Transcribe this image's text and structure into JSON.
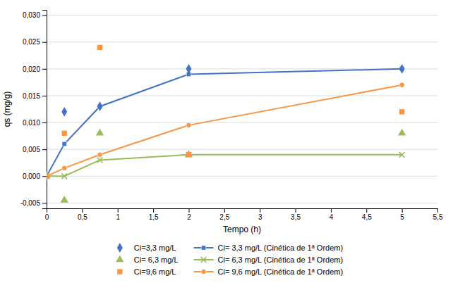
{
  "chart_data": {
    "type": "line",
    "xlabel": "Tempo (h)",
    "ylabel": "qs (mg/g)",
    "x": [
      0,
      0.25,
      0.75,
      2.0,
      5.0
    ],
    "series": [
      {
        "name": "Ci=3,3 mg/L",
        "type": "scatter",
        "color": "#4472C4",
        "marker": "diamond",
        "values": [
          0.0,
          0.012,
          0.013,
          0.02,
          0.02
        ]
      },
      {
        "name": "Ci= 3,3 mg/L (Cinética de 1ª Ordem)",
        "type": "line",
        "color": "#4472C4",
        "marker": "square",
        "values": [
          0.0,
          0.006,
          0.013,
          0.019,
          0.02
        ]
      },
      {
        "name": "Ci= 6,3 mg/L",
        "type": "scatter",
        "color": "#9BBB59",
        "marker": "triangle",
        "values": [
          0.0,
          -0.0045,
          0.008,
          0.004,
          0.008
        ]
      },
      {
        "name": "Ci= 6,3 mg/L (Cinética de 1ª Ordem)",
        "type": "line",
        "color": "#9BBB59",
        "marker": "cross",
        "values": [
          0.0,
          0.0,
          0.003,
          0.004,
          0.004
        ]
      },
      {
        "name": "Ci=9,6 mg/L",
        "type": "scatter",
        "color": "#F79646",
        "marker": "square",
        "values": [
          0.0,
          0.008,
          0.024,
          0.004,
          0.012
        ]
      },
      {
        "name": "Ci= 9,6 mg/L (Cinética de 1ª Ordem)",
        "type": "line",
        "color": "#F79646",
        "marker": "circle",
        "values": [
          0.0,
          0.0015,
          0.004,
          0.0095,
          0.017
        ]
      }
    ],
    "xlim": [
      0,
      5.5
    ],
    "ylim": [
      -0.006,
      0.031
    ],
    "xticks": [
      0,
      {
        "value": 0.5,
        "label": "0,5"
      },
      1,
      {
        "value": 1.5,
        "label": "1,5"
      },
      2,
      {
        "value": 2.5,
        "label": "2,5"
      },
      3,
      {
        "value": 3.5,
        "label": "3,5"
      },
      4,
      {
        "value": 4.5,
        "label": "4,5"
      },
      5,
      {
        "value": 5.5,
        "label": "5,5"
      }
    ],
    "yticks": [
      {
        "value": -0.005,
        "label": "-0,005"
      },
      {
        "value": 0.0,
        "label": "0,000"
      },
      {
        "value": 0.005,
        "label": "0,005"
      },
      {
        "value": 0.01,
        "label": "0,010"
      },
      {
        "value": 0.015,
        "label": "0,015"
      },
      {
        "value": 0.02,
        "label": "0,020"
      },
      {
        "value": 0.025,
        "label": "0,025"
      },
      {
        "value": 0.03,
        "label": "0,030"
      }
    ],
    "grid": "y",
    "legend": "bottom"
  }
}
